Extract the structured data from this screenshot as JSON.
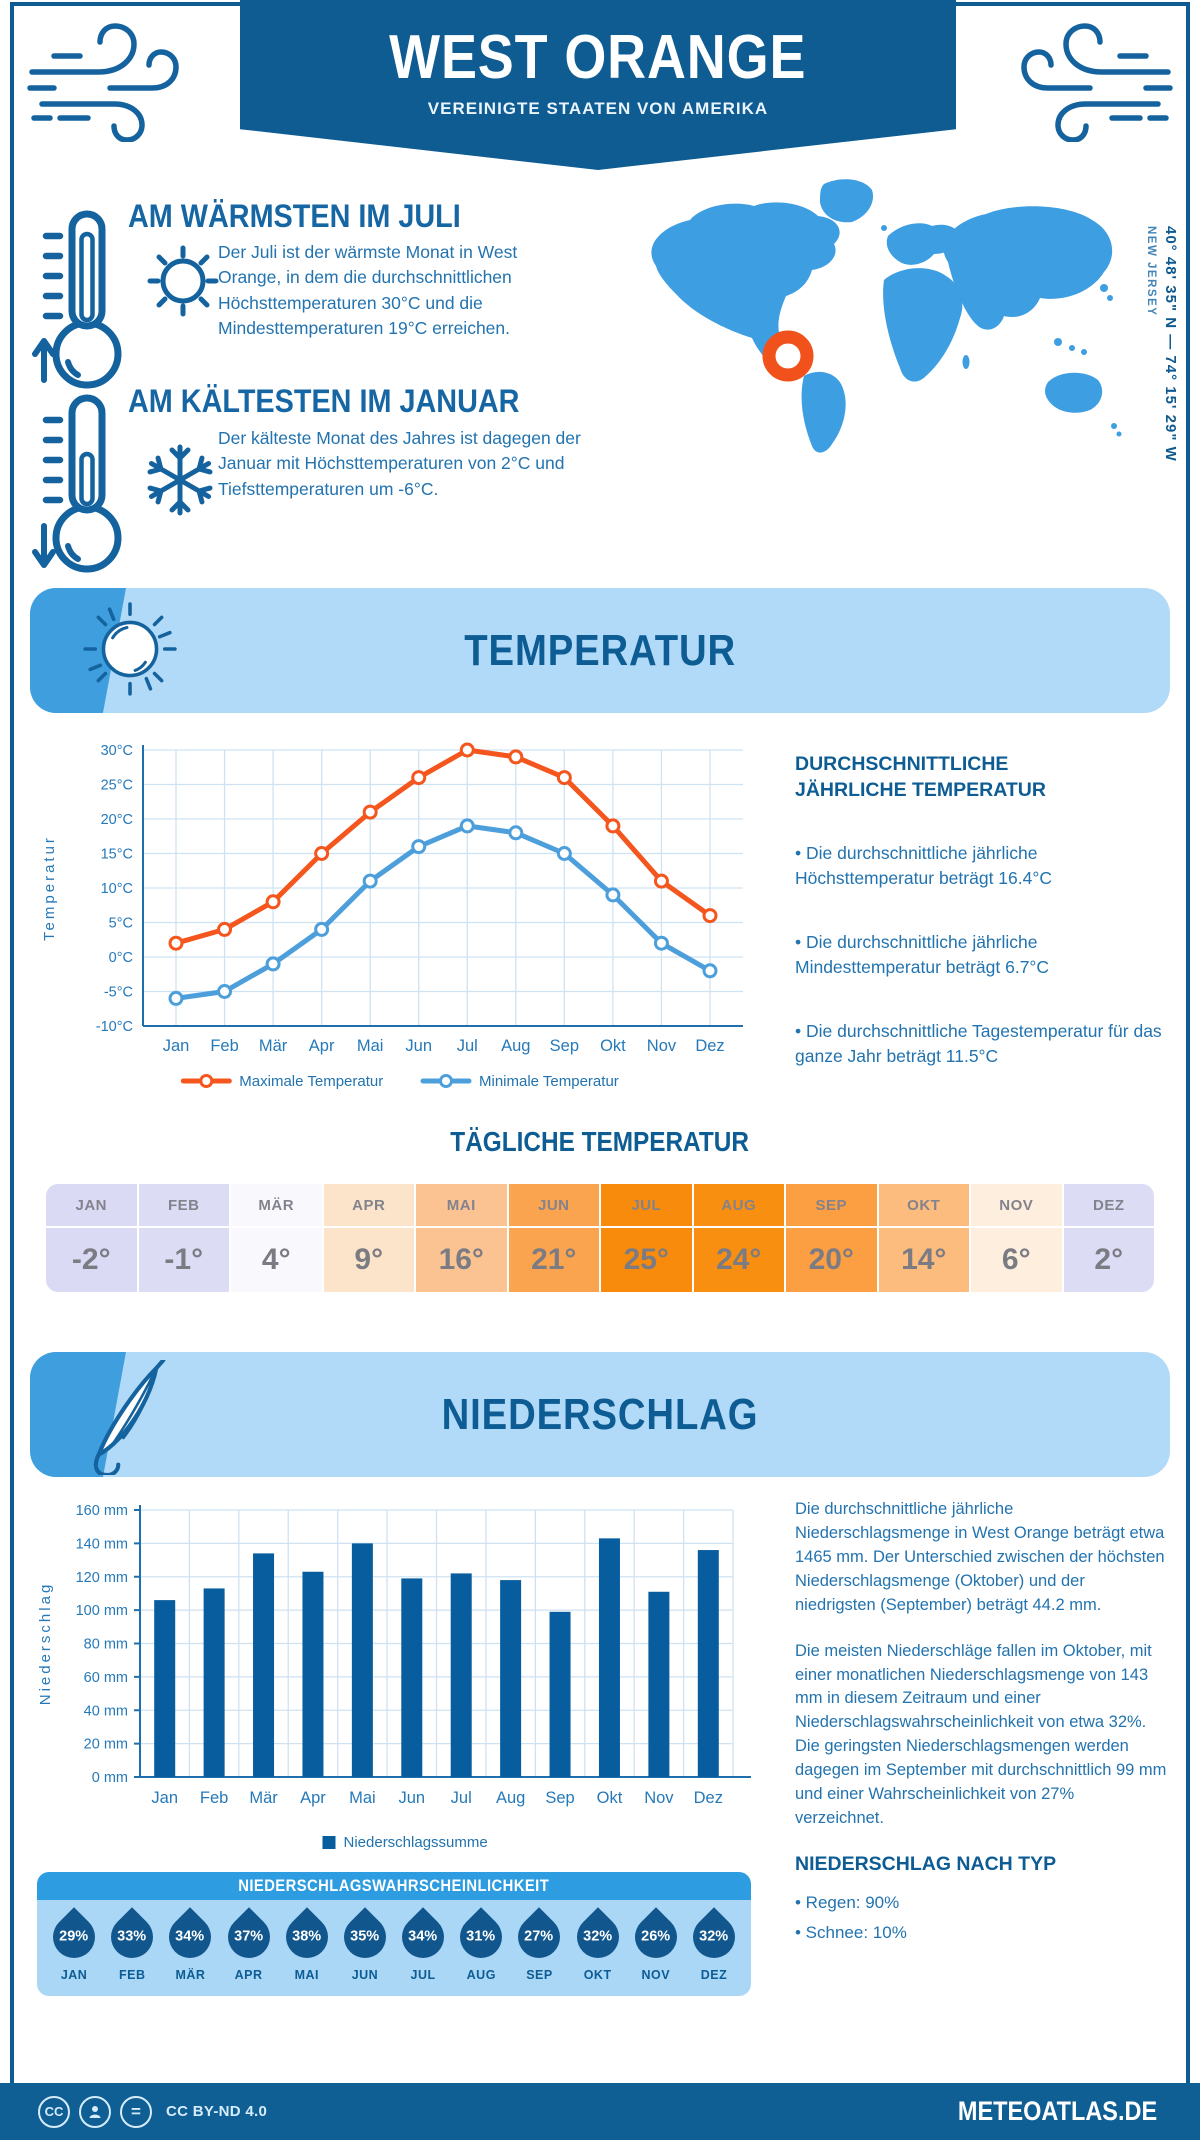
{
  "header": {
    "title": "WEST ORANGE",
    "subtitle": "VEREINIGTE STAATEN VON AMERIKA"
  },
  "location": {
    "coordinates": "40° 48' 35\" N — 74° 15' 29\" W",
    "region": "NEW JERSEY"
  },
  "warmest": {
    "heading": "AM WÄRMSTEN IM JULI",
    "text": "Der Juli ist der wärmste Monat in West Orange, in dem die durchschnittlichen Höchsttemperaturen 30°C und die Mindesttemperaturen 19°C erreichen."
  },
  "coldest": {
    "heading": "AM KÄLTESTEN IM JANUAR",
    "text": "Der kälteste Monat des Jahres ist dagegen der Januar mit Höchsttemperaturen von 2°C und Tiefsttemperaturen um -6°C."
  },
  "temperature_section": {
    "title": "TEMPERATUR",
    "annual": {
      "heading": "DURCHSCHNITTLICHE JÄHRLICHE TEMPERATUR",
      "bullets": [
        "• Die durchschnittliche jährliche Höchsttemperatur beträgt 16.4°C",
        "• Die durchschnittliche jährliche Mindesttemperatur beträgt 6.7°C",
        "• Die durchschnittliche Tagestemperatur für das ganze Jahr beträgt 11.5°C"
      ]
    }
  },
  "precipitation_section": {
    "title": "NIEDERSCHLAG",
    "paragraphs": [
      "Die durchschnittliche jährliche Niederschlagsmenge in West Orange beträgt etwa 1465 mm. Der Unterschied zwischen der höchsten Niederschlagsmenge (Oktober) und der niedrigsten (September) beträgt 44.2 mm.",
      "Die meisten Niederschläge fallen im Oktober, mit einer monatlichen Niederschlagsmenge von 143 mm in diesem Zeitraum und einer Niederschlagswahrscheinlichkeit von etwa 32%. Die geringsten Niederschlagsmengen werden dagegen im September mit durchschnittlich 99 mm und einer Wahrscheinlichkeit von 27% verzeichnet."
    ],
    "type_heading": "NIEDERSCHLAG NACH TYP",
    "type_bullets": [
      "• Regen: 90%",
      "• Schnee: 10%"
    ]
  },
  "footer": {
    "cc_label": "CC",
    "nd_label": "=",
    "license": "CC BY-ND 4.0",
    "site": "METEOATLAS.DE"
  },
  "colors": {
    "primary_dark_blue": "#0e5c92",
    "heading_blue": "#1766a4",
    "body_blue": "#2273af",
    "banner_light_blue": "#b1d9f8",
    "banner_accent_blue": "#3f9ede",
    "map_blue": "#3d9ee2",
    "marker_orange": "#f1511b",
    "max_temp_orange": "#f4561e",
    "min_temp_blue": "#4d9fdc",
    "bar_blue": "#085d9e",
    "drop_blue": "#11568c",
    "prob_header_blue": "#2d9ce0",
    "prob_body_blue": "#abd7f7",
    "footer_blue": "#0f5e94"
  },
  "chart_data": [
    {
      "id": "temperature_line",
      "type": "line",
      "categories": [
        "Jan",
        "Feb",
        "Mär",
        "Apr",
        "Mai",
        "Jun",
        "Jul",
        "Aug",
        "Sep",
        "Okt",
        "Nov",
        "Dez"
      ],
      "series": [
        {
          "name": "Maximale Temperatur",
          "color": "#f4561e",
          "values": [
            2,
            4,
            8,
            15,
            21,
            26,
            30,
            29,
            26,
            19,
            11,
            6
          ]
        },
        {
          "name": "Minimale Temperatur",
          "color": "#4d9fdc",
          "values": [
            -6,
            -5,
            -1,
            4,
            11,
            16,
            19,
            18,
            15,
            9,
            2,
            -2
          ]
        }
      ],
      "xlabel": "",
      "ylabel": "Temperatur",
      "ylim": [
        -10,
        30
      ],
      "ytick_step": 5,
      "ytick_suffix": "°C",
      "grid": true,
      "legend_position": "bottom"
    },
    {
      "id": "precipitation_bar",
      "type": "bar",
      "categories": [
        "Jan",
        "Feb",
        "Mär",
        "Apr",
        "Mai",
        "Jun",
        "Jul",
        "Aug",
        "Sep",
        "Okt",
        "Nov",
        "Dez"
      ],
      "series": [
        {
          "name": "Niederschlagssumme",
          "color": "#085d9e",
          "values": [
            106,
            113,
            134,
            123,
            140,
            119,
            122,
            118,
            99,
            143,
            111,
            136
          ]
        }
      ],
      "xlabel": "",
      "ylabel": "Niederschlag",
      "ylim": [
        0,
        160
      ],
      "ytick_step": 20,
      "ytick_suffix": " mm",
      "grid": true,
      "legend_position": "bottom"
    },
    {
      "id": "daily_temperature",
      "type": "table",
      "title": "TÄGLICHE TEMPERATUR",
      "categories": [
        "JAN",
        "FEB",
        "MÄR",
        "APR",
        "MAI",
        "JUN",
        "JUL",
        "AUG",
        "SEP",
        "OKT",
        "NOV",
        "DEZ"
      ],
      "values": [
        "-2°",
        "-1°",
        "4°",
        "9°",
        "16°",
        "21°",
        "25°",
        "24°",
        "20°",
        "14°",
        "6°",
        "2°"
      ],
      "cell_colors": [
        "#dbdaf4",
        "#dddcf5",
        "#f8f8fd",
        "#fce4ca",
        "#fcc392",
        "#fba450",
        "#f88b0c",
        "#f98f10",
        "#fb9f42",
        "#fcbc7e",
        "#fdeedd",
        "#dddcf5"
      ]
    },
    {
      "id": "precipitation_probability",
      "type": "table",
      "title": "NIEDERSCHLAGSWAHRSCHEINLICHKEIT",
      "categories": [
        "JAN",
        "FEB",
        "MÄR",
        "APR",
        "MAI",
        "JUN",
        "JUL",
        "AUG",
        "SEP",
        "OKT",
        "NOV",
        "DEZ"
      ],
      "values": [
        "29%",
        "33%",
        "34%",
        "37%",
        "38%",
        "35%",
        "34%",
        "31%",
        "27%",
        "32%",
        "26%",
        "32%"
      ]
    }
  ]
}
